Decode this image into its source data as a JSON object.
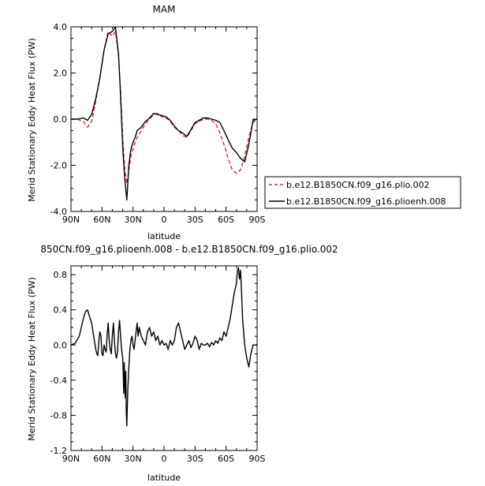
{
  "chart_data": [
    {
      "type": "line",
      "title": "MAM",
      "xlabel": "latitude",
      "ylabel": "Merid Stationary Eddy Heat Flux (PW)",
      "xticks": [
        "90N",
        "60N",
        "30N",
        "0",
        "30S",
        "60S",
        "90S"
      ],
      "yticks": [
        "4.0",
        "2.0",
        "0.0",
        "-2.0",
        "-4.0"
      ],
      "xlim": [
        90,
        -90
      ],
      "ylim": [
        -4.0,
        4.0
      ],
      "legend_position": "right",
      "series": [
        {
          "name": "b.e12.B1850CN.f09_g16.plio.002",
          "color": "#e0252a",
          "dash": "dashed",
          "x": [
            90,
            84,
            78,
            74,
            70,
            66,
            62,
            58,
            54,
            50,
            47,
            44,
            42,
            40,
            38,
            36,
            34,
            32,
            30,
            28,
            26,
            22,
            18,
            14,
            10,
            6,
            2,
            -2,
            -6,
            -10,
            -14,
            -18,
            -22,
            -26,
            -30,
            -34,
            -38,
            -42,
            -46,
            -50,
            -54,
            -58,
            -62,
            -66,
            -70,
            -74,
            -78,
            -82,
            -86,
            -90
          ],
          "y": [
            0.0,
            0.0,
            -0.1,
            -0.35,
            -0.1,
            0.8,
            1.8,
            3.0,
            3.8,
            3.6,
            3.8,
            2.8,
            1.2,
            -0.8,
            -2.2,
            -2.8,
            -2.2,
            -1.6,
            -1.3,
            -1.0,
            -0.8,
            -0.5,
            -0.2,
            0.0,
            0.2,
            0.25,
            0.1,
            0.05,
            -0.1,
            -0.35,
            -0.5,
            -0.7,
            -0.8,
            -0.5,
            -0.2,
            -0.1,
            0.0,
            0.0,
            -0.05,
            -0.2,
            -0.6,
            -1.1,
            -1.7,
            -2.2,
            -2.35,
            -2.2,
            -1.6,
            -0.8,
            -0.15,
            0.0
          ]
        },
        {
          "name": "b.e12.B1850CN.f09_g16.plioenh.008",
          "color": "#000000",
          "dash": "solid",
          "x": [
            90,
            84,
            78,
            74,
            70,
            66,
            62,
            58,
            54,
            50,
            47,
            44,
            42,
            40,
            38,
            36,
            34,
            32,
            30,
            28,
            26,
            22,
            18,
            14,
            10,
            6,
            2,
            -2,
            -6,
            -10,
            -14,
            -18,
            -22,
            -26,
            -30,
            -34,
            -38,
            -42,
            -46,
            -50,
            -54,
            -58,
            -62,
            -66,
            -70,
            -74,
            -78,
            -82,
            -86,
            -90
          ],
          "y": [
            0.0,
            0.0,
            0.05,
            -0.05,
            0.2,
            0.9,
            1.8,
            3.0,
            3.7,
            3.8,
            4.0,
            2.8,
            1.0,
            -1.2,
            -2.6,
            -3.5,
            -2.0,
            -1.3,
            -1.0,
            -0.8,
            -0.5,
            -0.35,
            -0.1,
            0.05,
            0.25,
            0.2,
            0.15,
            0.1,
            -0.05,
            -0.3,
            -0.5,
            -0.6,
            -0.75,
            -0.45,
            -0.15,
            -0.05,
            0.05,
            0.05,
            0.0,
            -0.05,
            -0.15,
            -0.5,
            -0.9,
            -1.25,
            -1.45,
            -1.7,
            -1.85,
            -1.1,
            -0.05,
            0.0
          ]
        }
      ]
    },
    {
      "type": "line",
      "title": "850CN.f09_g16.plioenh.008 - b.e12.B1850CN.f09_g16.plio.002",
      "xlabel": "latitude",
      "ylabel": "Merid Stationary Eddy Heat Flux (PW)",
      "xticks": [
        "90N",
        "60N",
        "30N",
        "0",
        "30S",
        "60S",
        "90S"
      ],
      "yticks": [
        "0.8",
        "0.4",
        "0.0",
        "-0.4",
        "-0.8",
        "-1.2"
      ],
      "xlim": [
        90,
        -90
      ],
      "ylim": [
        -1.2,
        0.9
      ],
      "series": [
        {
          "name": "",
          "color": "#000000",
          "dash": "solid",
          "x": [
            90,
            86,
            82,
            78,
            76,
            74,
            72,
            70,
            68,
            66,
            65,
            64,
            63,
            62,
            61,
            60,
            59,
            58,
            57,
            56,
            55,
            54,
            53,
            52,
            51,
            50,
            49,
            48,
            47,
            46,
            45,
            44,
            43,
            42,
            41,
            40,
            39.5,
            39,
            38.5,
            38,
            37.5,
            37,
            36.5,
            36,
            35,
            34,
            33,
            32,
            31,
            30,
            29,
            28,
            27,
            26,
            25,
            24,
            22,
            20,
            18,
            16,
            14,
            12,
            10,
            8,
            6,
            4,
            2,
            0,
            -2,
            -4,
            -6,
            -8,
            -10,
            -12,
            -14,
            -16,
            -18,
            -20,
            -22,
            -24,
            -26,
            -28,
            -30,
            -32,
            -34,
            -36,
            -38,
            -40,
            -42,
            -44,
            -46,
            -48,
            -50,
            -52,
            -54,
            -56,
            -58,
            -60,
            -62,
            -64,
            -66,
            -68,
            -70,
            -71,
            -72,
            -73,
            -74,
            -75,
            -76,
            -78,
            -80,
            -82,
            -84,
            -86,
            -88,
            -90
          ],
          "y": [
            0.0,
            0.02,
            0.1,
            0.3,
            0.38,
            0.4,
            0.32,
            0.25,
            0.1,
            -0.05,
            -0.1,
            -0.12,
            0.05,
            0.15,
            0.1,
            -0.1,
            -0.12,
            0.0,
            -0.05,
            -0.08,
            0.12,
            0.25,
            0.05,
            -0.05,
            -0.1,
            0.1,
            0.25,
            0.05,
            -0.1,
            -0.15,
            -0.08,
            0.15,
            0.28,
            0.1,
            -0.05,
            -0.15,
            -0.3,
            -0.55,
            -0.2,
            -0.4,
            -0.6,
            -0.3,
            -0.75,
            -0.92,
            -0.5,
            -0.25,
            -0.05,
            0.05,
            0.1,
            0.0,
            -0.05,
            0.05,
            0.15,
            0.25,
            0.1,
            0.2,
            0.1,
            0.05,
            0.0,
            0.15,
            0.2,
            0.1,
            0.15,
            0.05,
            0.1,
            0.0,
            0.05,
            0.0,
            0.02,
            -0.05,
            0.05,
            0.0,
            0.05,
            0.2,
            0.25,
            0.15,
            0.05,
            -0.05,
            0.0,
            0.05,
            -0.03,
            0.02,
            0.1,
            0.05,
            -0.05,
            0.02,
            0.0,
            0.0,
            0.02,
            -0.02,
            0.03,
            0.0,
            0.05,
            0.02,
            0.08,
            0.05,
            0.15,
            0.1,
            0.2,
            0.3,
            0.45,
            0.6,
            0.7,
            0.85,
            0.88,
            0.75,
            0.85,
            0.6,
            0.3,
            0.0,
            -0.15,
            -0.25,
            -0.1,
            0.0,
            0.0,
            0.0
          ]
        }
      ]
    }
  ]
}
